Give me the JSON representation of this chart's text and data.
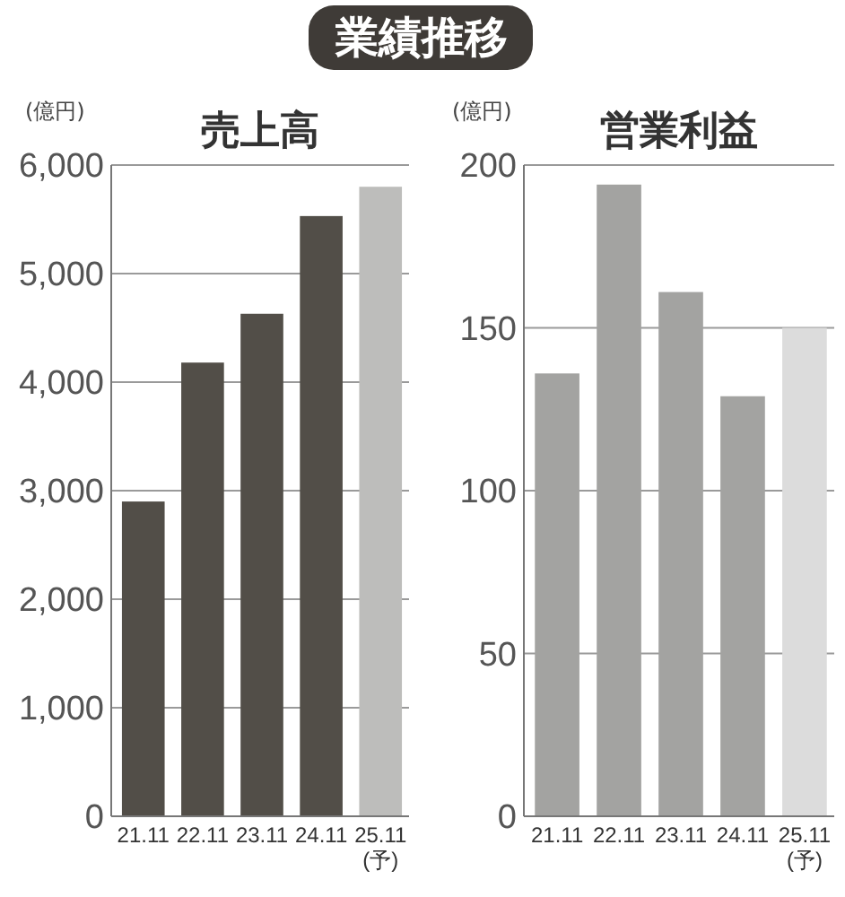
{
  "chart_data": [
    {
      "type": "other",
      "title": "業績推移"
    },
    {
      "type": "bar",
      "title": "売上高",
      "ylabel": "(億円)",
      "categories": [
        "21.11",
        "22.11",
        "23.11",
        "24.11",
        "25.11\n(予)"
      ],
      "values": [
        2900,
        4180,
        4630,
        5530,
        5800
      ],
      "colors": [
        "#524e48",
        "#524e48",
        "#524e48",
        "#524e48",
        "#bdbdbb"
      ],
      "ylim": [
        0,
        6000
      ],
      "yticks": [
        {
          "value": 0,
          "label": "0"
        },
        {
          "value": 1000,
          "label": "1,000"
        },
        {
          "value": 2000,
          "label": "2,000"
        },
        {
          "value": 3000,
          "label": "3,000"
        },
        {
          "value": 4000,
          "label": "4,000"
        },
        {
          "value": 5000,
          "label": "5,000"
        },
        {
          "value": 6000,
          "label": "6,000"
        }
      ],
      "grid": "y"
    },
    {
      "type": "bar",
      "title": "営業利益",
      "ylabel": "(億円)",
      "categories": [
        "21.11",
        "22.11",
        "23.11",
        "24.11",
        "25.11\n(予)"
      ],
      "values": [
        136,
        194,
        161,
        129,
        150
      ],
      "colors": [
        "#a3a3a1",
        "#a3a3a1",
        "#a3a3a1",
        "#a3a3a1",
        "#dcdcdc"
      ],
      "ylim": [
        0,
        200
      ],
      "yticks": [
        0,
        50,
        100,
        150,
        200
      ],
      "grid": "y"
    }
  ]
}
